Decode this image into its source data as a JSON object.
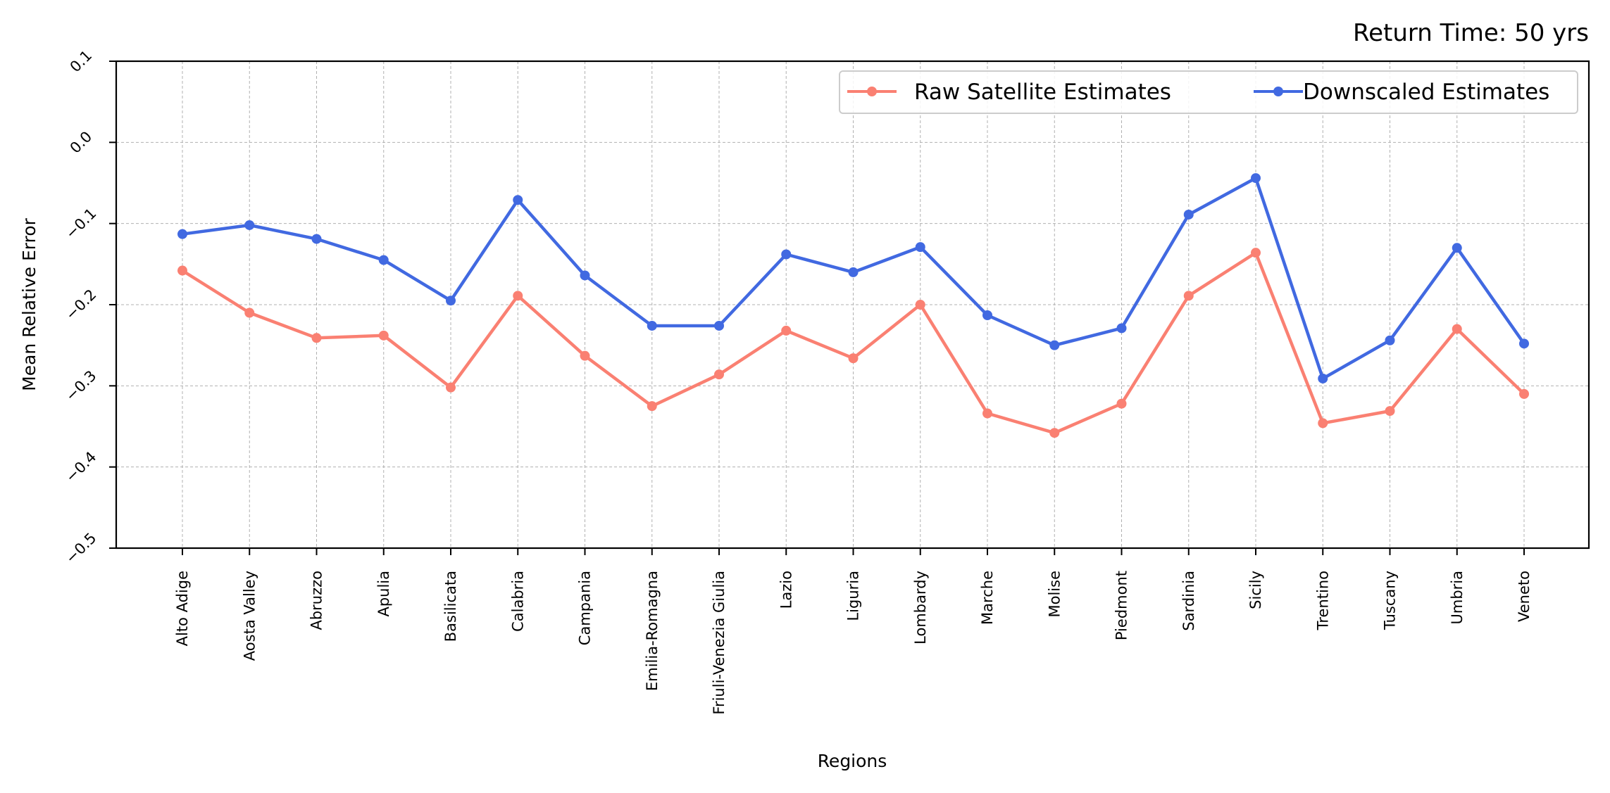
{
  "chart_data": {
    "type": "line",
    "title": "Return Time: 50 yrs",
    "xlabel": "Regions",
    "ylabel": "Mean Relative Error",
    "ylim": [
      -0.5,
      0.1
    ],
    "yticks": [
      "−0.5",
      "−0.4",
      "−0.3",
      "−0.2",
      "−0.1",
      "0.0",
      "0.1"
    ],
    "grid": true,
    "legend_position": "top-right",
    "categories": [
      "Alto Adige",
      "Aosta Valley",
      "Abruzzo",
      "Apulia",
      "Basilicata",
      "Calabria",
      "Campania",
      "Emilia-Romagna",
      "Friuli-Venezia Giulia",
      "Lazio",
      "Liguria",
      "Lombardy",
      "Marche",
      "Molise",
      "Piedmont",
      "Sardinia",
      "Sicily",
      "Trentino",
      "Tuscany",
      "Umbria",
      "Veneto"
    ],
    "series": [
      {
        "name": "Raw Satellite Estimates",
        "color": "#fa8072",
        "values": [
          -0.158,
          -0.21,
          -0.241,
          -0.238,
          -0.302,
          -0.189,
          -0.263,
          -0.325,
          -0.286,
          -0.232,
          -0.266,
          -0.2,
          -0.334,
          -0.358,
          -0.322,
          -0.189,
          -0.136,
          -0.346,
          -0.331,
          -0.23,
          -0.31
        ]
      },
      {
        "name": "Downscaled Estimates",
        "color": "#4169e1",
        "values": [
          -0.113,
          -0.102,
          -0.119,
          -0.145,
          -0.195,
          -0.071,
          -0.164,
          -0.226,
          -0.226,
          -0.138,
          -0.16,
          -0.129,
          -0.213,
          -0.25,
          -0.229,
          -0.089,
          -0.044,
          -0.291,
          -0.244,
          -0.13,
          -0.248
        ]
      }
    ]
  }
}
